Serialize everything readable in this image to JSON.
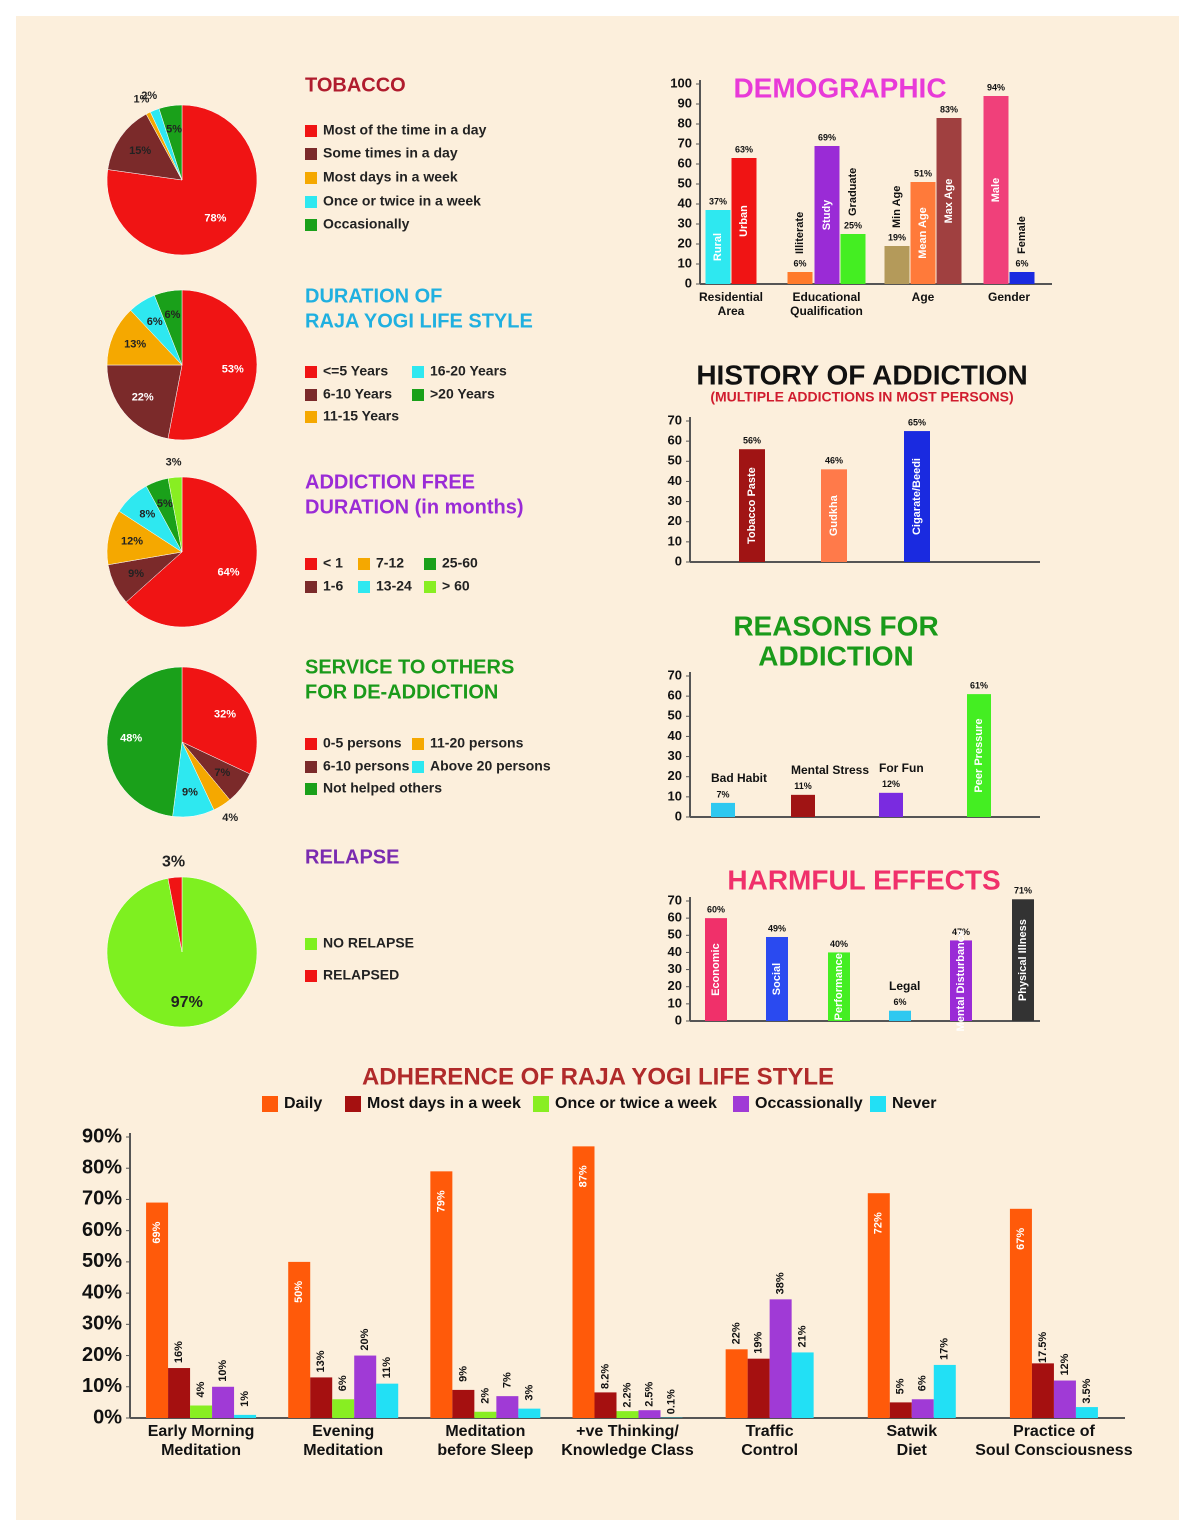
{
  "chart_data": [
    {
      "type": "pie",
      "title": [
        "TOBACCO"
      ],
      "categories": [
        "Most of the time in a day",
        "Some times in a day",
        "Most days in a week",
        "Once or twice in a week",
        "Occasionally"
      ],
      "values": [
        78,
        15,
        1,
        2,
        5
      ],
      "value_labels": [
        "78%",
        "15%",
        "1%",
        "2%",
        "5%"
      ],
      "colors": [
        "#f01414",
        "#7b2a2a",
        "#f5a800",
        "#2ee8f0",
        "#1aa01a"
      ]
    },
    {
      "type": "pie",
      "title": [
        "DURATION OF",
        "RAJA YOGI LIFE STYLE"
      ],
      "categories": [
        "<=5 Years",
        "6-10 Years",
        "11-15 Years",
        "16-20 Years",
        ">20 Years"
      ],
      "values": [
        53,
        22,
        13,
        6,
        6
      ],
      "value_labels": [
        "53%",
        "22%",
        "13%",
        "6%",
        "6%"
      ],
      "colors": [
        "#f01414",
        "#7b2a2a",
        "#f5a800",
        "#2ee8f0",
        "#1aa01a"
      ]
    },
    {
      "type": "pie",
      "title": [
        "ADDICTION FREE",
        "DURATION (in months)"
      ],
      "categories": [
        "< 1",
        "1-6",
        "7-12",
        "13-24",
        "25-60",
        "> 60"
      ],
      "values": [
        64,
        9,
        12,
        8,
        5,
        3
      ],
      "value_labels": [
        "64%",
        "9%",
        "12%",
        "8%",
        "5%",
        "3%"
      ],
      "colors": [
        "#f01414",
        "#7b2a2a",
        "#f5a800",
        "#2ee8f0",
        "#1aa01a",
        "#88ee22"
      ]
    },
    {
      "type": "pie",
      "title": [
        "SERVICE TO OTHERS",
        "FOR DE-ADDICTION"
      ],
      "categories": [
        "0-5 persons",
        "6-10 persons",
        "11-20 persons",
        "Above 20 persons",
        "Not helped others"
      ],
      "values": [
        32,
        7,
        4,
        9,
        48
      ],
      "value_labels": [
        "32%",
        "7%",
        "4%",
        "9%",
        "48%"
      ],
      "colors": [
        "#f01414",
        "#7b2a2a",
        "#f5a800",
        "#2ee8f0",
        "#1aa01a"
      ]
    },
    {
      "type": "pie",
      "title": [
        "RELAPSE"
      ],
      "categories": [
        "NO RELAPSE",
        "RELAPSED"
      ],
      "values": [
        97,
        3
      ],
      "value_labels": [
        "97%",
        "3%"
      ],
      "colors": [
        "#7ef020",
        "#f01414"
      ]
    },
    {
      "type": "bar",
      "title": [
        "DEMOGRAPHIC"
      ],
      "ylim": [
        0,
        100
      ],
      "yticks": [
        0,
        10,
        20,
        30,
        40,
        50,
        60,
        70,
        80,
        90,
        100
      ],
      "groups": [
        {
          "label": [
            "Residential",
            "Area"
          ],
          "names": [
            "Rural",
            "Urban"
          ],
          "values": [
            37,
            63
          ],
          "value_labels": [
            "37%",
            "63%"
          ],
          "colors": [
            "#2ee8f0",
            "#f01414"
          ]
        },
        {
          "label": [
            "Educational",
            "Qualification"
          ],
          "names": [
            "Illiterate",
            "Study",
            "Graduate"
          ],
          "values": [
            6,
            69,
            25
          ],
          "value_labels": [
            "6%",
            "69%",
            "25%"
          ],
          "colors": [
            "#ff7a2a",
            "#9a2bd6",
            "#44ee22"
          ]
        },
        {
          "label": [
            "Age"
          ],
          "names": [
            "Min Age",
            "Mean Age",
            "Max Age"
          ],
          "values": [
            19,
            51,
            83
          ],
          "value_labels": [
            "19%",
            "51%",
            "83%"
          ],
          "colors": [
            "#b49a5a",
            "#ff7a3a",
            "#a04040"
          ]
        },
        {
          "label": [
            "Gender"
          ],
          "names": [
            "Male",
            "Female"
          ],
          "values": [
            94,
            6
          ],
          "value_labels": [
            "94%",
            "6%"
          ],
          "colors": [
            "#f0407a",
            "#1a2ae0"
          ]
        }
      ]
    },
    {
      "type": "bar",
      "title": [
        "HISTORY OF ADDICTION"
      ],
      "subtitle": "(MULTIPLE ADDICTIONS IN MOST PERSONS)",
      "ylim": [
        0,
        70
      ],
      "yticks": [
        0,
        10,
        20,
        30,
        40,
        50,
        60,
        70
      ],
      "categories": [
        "Tobacco Paste",
        "Gudkha",
        "Cigarate/Beedi"
      ],
      "values": [
        56,
        46,
        65
      ],
      "value_labels": [
        "56%",
        "46%",
        "65%"
      ],
      "colors": [
        "#a01414",
        "#ff7a4a",
        "#1a2ae0"
      ]
    },
    {
      "type": "bar",
      "title": [
        "REASONS FOR",
        "ADDICTION"
      ],
      "ylim": [
        0,
        70
      ],
      "yticks": [
        0,
        10,
        20,
        30,
        40,
        50,
        60,
        70
      ],
      "categories": [
        "Bad Habit",
        "Mental Stress",
        "For Fun",
        "Peer Pressure"
      ],
      "values": [
        7,
        11,
        12,
        61
      ],
      "value_labels": [
        "7%",
        "11%",
        "12%",
        "61%"
      ],
      "colors": [
        "#2ec8f0",
        "#a01414",
        "#7a2be0",
        "#44ee22"
      ]
    },
    {
      "type": "bar",
      "title": [
        "HARMFUL EFFECTS"
      ],
      "ylim": [
        0,
        70
      ],
      "yticks": [
        0,
        10,
        20,
        30,
        40,
        50,
        60,
        70
      ],
      "categories": [
        "Economic",
        "Social",
        "Performance",
        "Legal",
        "Mental Disturbance",
        "Physical Illness"
      ],
      "values": [
        60,
        49,
        40,
        6,
        47,
        71
      ],
      "value_labels": [
        "60%",
        "49%",
        "40%",
        "6%",
        "47%",
        "71%"
      ],
      "colors": [
        "#f0306a",
        "#2a4af0",
        "#44ee22",
        "#2ec8f0",
        "#9a2bd6",
        "#333333"
      ]
    },
    {
      "type": "bar",
      "title": [
        "ADHERENCE OF RAJA YOGI LIFE STYLE"
      ],
      "ylim": [
        0,
        90
      ],
      "yticks": [
        {
          "value": 0,
          "label": "0%"
        },
        {
          "value": 10,
          "label": "10%"
        },
        {
          "value": 20,
          "label": "20%"
        },
        {
          "value": 30,
          "label": "30%"
        },
        {
          "value": 40,
          "label": "40%"
        },
        {
          "value": 50,
          "label": "50%"
        },
        {
          "value": 60,
          "label": "60%"
        },
        {
          "value": 70,
          "label": "70%"
        },
        {
          "value": 80,
          "label": "80%"
        },
        {
          "value": 90,
          "label": "90%"
        }
      ],
      "categories": [
        [
          "Early Morning",
          "Meditation"
        ],
        [
          "Evening",
          "Meditation"
        ],
        [
          "Meditation",
          "before Sleep"
        ],
        [
          "+ve Thinking/",
          "Knowledge Class"
        ],
        [
          "Traffic",
          "Control"
        ],
        [
          "Satwik",
          "Diet"
        ],
        [
          "Practice of",
          "Soul Consciousness"
        ]
      ],
      "series": [
        {
          "name": "Daily",
          "color": "#ff5a0a",
          "values": [
            69,
            50,
            79,
            87,
            22,
            72,
            67
          ],
          "value_labels": [
            "69%",
            "50%",
            "79%",
            "87%",
            "22%",
            "72%",
            "67%"
          ]
        },
        {
          "name": "Most days in a week",
          "color": "#a51010",
          "values": [
            16,
            13,
            9,
            8.2,
            19,
            5,
            17.5
          ],
          "value_labels": [
            "16%",
            "13%",
            "9%",
            "8.2%",
            "19%",
            "5%",
            "17.5%"
          ]
        },
        {
          "name": "Once or twice a week",
          "color": "#88ee22",
          "values": [
            4,
            6,
            2,
            2.2,
            null,
            null,
            null
          ],
          "value_labels": [
            "4%",
            "6%",
            "2%",
            "2.2%",
            null,
            null,
            null
          ]
        },
        {
          "name": "Occassionally",
          "color": "#a03ad6",
          "values": [
            10,
            20,
            7,
            2.5,
            38,
            6,
            12
          ],
          "value_labels": [
            "10%",
            "20%",
            "7%",
            "2.5%",
            "38%",
            "6%",
            "12%"
          ]
        },
        {
          "name": "Never",
          "color": "#22e0f5",
          "values": [
            1,
            11,
            3,
            0.1,
            21,
            17,
            3.5
          ],
          "value_labels": [
            "1%",
            "11%",
            "3%",
            "0.1%",
            "21%",
            "17%",
            "3.5%"
          ]
        }
      ]
    }
  ]
}
